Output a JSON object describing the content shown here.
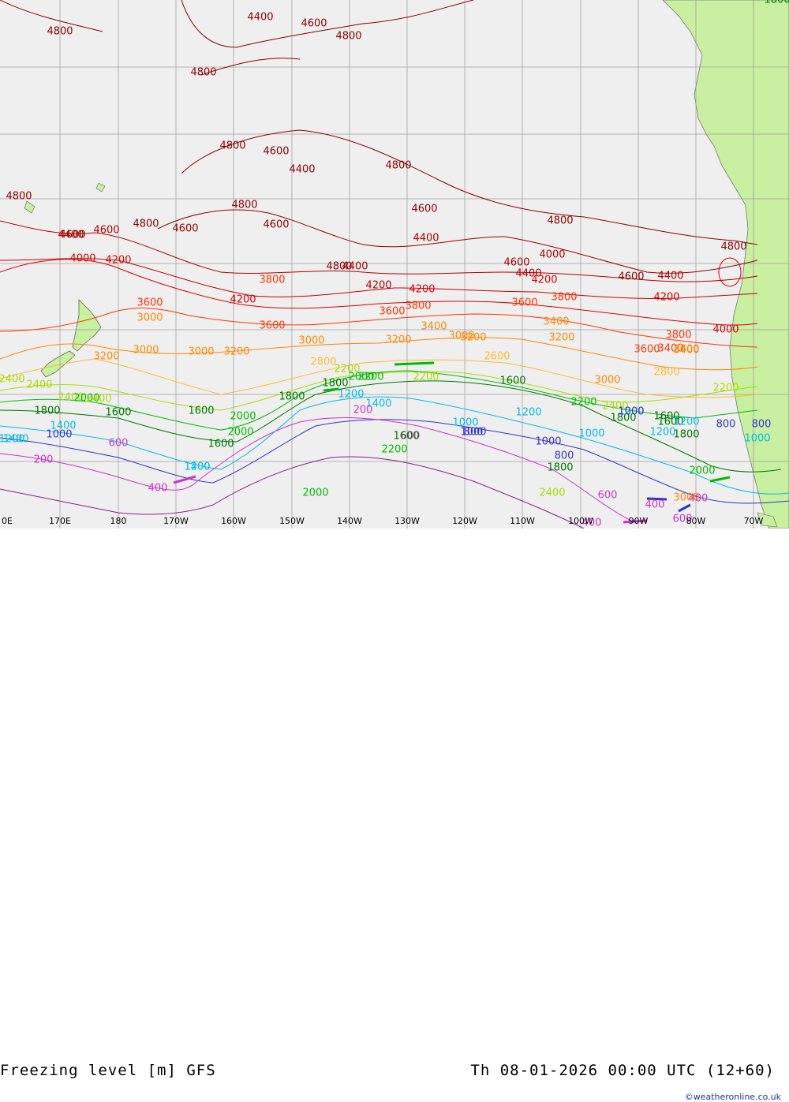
{
  "title": "Freezing level [m] GFS",
  "valid_time": "Th 08-01-2026 00:00 UTC (12+60)",
  "credit": "©weatheronline.co.uk",
  "lon_labels": [
    "170E",
    "180",
    "170W",
    "160W",
    "150W",
    "140W",
    "130W",
    "120W",
    "110W",
    "100W",
    "90W",
    "80W",
    "70W"
  ],
  "lon_label_partial": "0E",
  "colors": {
    "ocean": "#efefef",
    "land": "#c8f0a0",
    "grid": "#a0a0a0",
    "c4800": "#8b0000",
    "c4400": "#b00000",
    "c4000": "#dd0000",
    "c3600": "#ff3300",
    "c3200": "#ff8800",
    "c2800": "#ffbb33",
    "c2400": "#aadd00",
    "c2000": "#00bb00",
    "c1600": "#007700",
    "c1200": "#00bbee",
    "c800": "#3333cc",
    "c400": "#cc33cc",
    "c0": "#882288"
  },
  "contour_levels": [
    4800,
    4400,
    4000,
    3600,
    3200,
    2800,
    2400,
    2000,
    1600,
    1200,
    800,
    400,
    200
  ],
  "contour_labels": [
    {
      "text": "4800",
      "level": "c4800"
    },
    {
      "text": "4400",
      "level": "c4800"
    },
    {
      "text": "4600",
      "level": "c4800"
    },
    {
      "text": "4800",
      "level": "c4800"
    },
    {
      "text": "4800",
      "level": "c4800"
    },
    {
      "text": "4800",
      "level": "c4800"
    },
    {
      "text": "4600",
      "level": "c4800"
    },
    {
      "text": "4400",
      "level": "c4800"
    },
    {
      "text": "4800",
      "level": "c4800"
    },
    {
      "text": "4800",
      "level": "c4800"
    },
    {
      "text": "4800",
      "level": "c4800"
    },
    {
      "text": "4600",
      "level": "c4800"
    },
    {
      "text": "4600",
      "level": "c4800"
    },
    {
      "text": "4800",
      "level": "c4800"
    },
    {
      "text": "4800",
      "level": "c4800"
    },
    {
      "text": "4600",
      "level": "c4800"
    },
    {
      "text": "4400",
      "level": "c4400"
    },
    {
      "text": "4600",
      "level": "c4800"
    },
    {
      "text": "4400",
      "level": "c4400"
    },
    {
      "text": "4800",
      "level": "c4800"
    },
    {
      "text": "4000",
      "level": "c4000"
    },
    {
      "text": "4200",
      "level": "c4000"
    },
    {
      "text": "4600",
      "level": "c4400"
    },
    {
      "text": "4400",
      "level": "c4400"
    },
    {
      "text": "4200",
      "level": "c4400"
    },
    {
      "text": "4000",
      "level": "c4400"
    },
    {
      "text": "4600",
      "level": "c4400"
    },
    {
      "text": "4400",
      "level": "c4400"
    },
    {
      "text": "4200",
      "level": "c4000"
    },
    {
      "text": "4800",
      "level": "c4800"
    },
    {
      "text": "4600",
      "level": "c4800"
    },
    {
      "text": "4400",
      "level": "c4400"
    },
    {
      "text": "4200",
      "level": "c4000"
    },
    {
      "text": "3600",
      "level": "c3600"
    },
    {
      "text": "4200",
      "level": "c4000"
    },
    {
      "text": "3600",
      "level": "c3600"
    },
    {
      "text": "3800",
      "level": "c3600"
    },
    {
      "text": "3600",
      "level": "c3600"
    },
    {
      "text": "3800",
      "level": "c3600"
    },
    {
      "text": "4200",
      "level": "c4000"
    },
    {
      "text": "3600",
      "level": "c3600"
    },
    {
      "text": "3400",
      "level": "c3200"
    },
    {
      "text": "3000",
      "level": "c3200"
    },
    {
      "text": "3800",
      "level": "c3600"
    },
    {
      "text": "3600",
      "level": "c3600"
    },
    {
      "text": "3400",
      "level": "c3600"
    },
    {
      "text": "4000",
      "level": "c4000"
    },
    {
      "text": "3800",
      "level": "c3600"
    },
    {
      "text": "3600",
      "level": "c3200"
    },
    {
      "text": "3400",
      "level": "c3200"
    },
    {
      "text": "3400",
      "level": "c3200"
    },
    {
      "text": "3200",
      "level": "c3200"
    },
    {
      "text": "3000",
      "level": "c3200"
    },
    {
      "text": "3200",
      "level": "c3200"
    },
    {
      "text": "3000",
      "level": "c3200"
    },
    {
      "text": "3200",
      "level": "c3200"
    },
    {
      "text": "3000",
      "level": "c3200"
    },
    {
      "text": "3200",
      "level": "c3200"
    },
    {
      "text": "3000",
      "level": "c3200"
    },
    {
      "text": "2800",
      "level": "c2800"
    },
    {
      "text": "2600",
      "level": "c2800"
    },
    {
      "text": "3000",
      "level": "c3200"
    },
    {
      "text": "3200",
      "level": "c3200"
    },
    {
      "text": "2800",
      "level": "c2800"
    },
    {
      "text": "2400",
      "level": "c2400"
    },
    {
      "text": "2400",
      "level": "c2400"
    },
    {
      "text": "2200",
      "level": "c2400"
    },
    {
      "text": "2000",
      "level": "c2000"
    },
    {
      "text": "2400",
      "level": "c2400"
    },
    {
      "text": "2200",
      "level": "c2000"
    },
    {
      "text": "2000",
      "level": "c2000"
    },
    {
      "text": "2200",
      "level": "c2000"
    },
    {
      "text": "2400",
      "level": "c2400"
    },
    {
      "text": "2200",
      "level": "c2400"
    },
    {
      "text": "2000",
      "level": "c2000"
    },
    {
      "text": "2200",
      "level": "c2400"
    },
    {
      "text": "2000",
      "level": "c2000"
    },
    {
      "text": "2400",
      "level": "c2400"
    },
    {
      "text": "1600",
      "level": "c1600"
    },
    {
      "text": "1800",
      "level": "c1600"
    },
    {
      "text": "1600",
      "level": "c1600"
    },
    {
      "text": "1800",
      "level": "c1600"
    },
    {
      "text": "1800",
      "level": "c1600"
    },
    {
      "text": "1600",
      "level": "c1600"
    },
    {
      "text": "1800",
      "level": "c1600"
    },
    {
      "text": "1800",
      "level": "c1600"
    },
    {
      "text": "1600",
      "level": "c1600"
    },
    {
      "text": "1600",
      "level": "c1600"
    },
    {
      "text": "1800",
      "level": "c1600"
    },
    {
      "text": "1600",
      "level": "c1600"
    },
    {
      "text": "1200",
      "level": "c1200"
    },
    {
      "text": "1000",
      "level": "c1200"
    },
    {
      "text": "1200",
      "level": "c1200"
    },
    {
      "text": "1400",
      "level": "c1200"
    },
    {
      "text": "1200",
      "level": "c1200"
    },
    {
      "text": "1400",
      "level": "c1200"
    },
    {
      "text": "1000",
      "level": "c1200"
    },
    {
      "text": "1200",
      "level": "c1200"
    },
    {
      "text": "1200",
      "level": "c1200"
    },
    {
      "text": "1000",
      "level": "c1200"
    },
    {
      "text": "1400",
      "level": "c1200"
    },
    {
      "text": "1200",
      "level": "c1200"
    },
    {
      "text": "1000",
      "level": "c800"
    },
    {
      "text": "800",
      "level": "c800"
    },
    {
      "text": "800",
      "level": "c800"
    },
    {
      "text": "1000",
      "level": "c800"
    },
    {
      "text": "800",
      "level": "c800"
    },
    {
      "text": "1000",
      "level": "c800"
    },
    {
      "text": "1000",
      "level": "c800"
    },
    {
      "text": "1400",
      "level": "c1200"
    },
    {
      "text": "1200",
      "level": "c1200"
    },
    {
      "text": "600",
      "level": "c400"
    },
    {
      "text": "600",
      "level": "c400"
    },
    {
      "text": "400",
      "level": "c400"
    },
    {
      "text": "400",
      "level": "c400"
    },
    {
      "text": "600",
      "level": "c400"
    },
    {
      "text": "400",
      "level": "c400"
    },
    {
      "text": "200",
      "level": "c400"
    },
    {
      "text": "200",
      "level": "c400"
    },
    {
      "text": "400",
      "level": "c400"
    },
    {
      "text": "600",
      "level": "c400"
    },
    {
      "text": "1800",
      "level": "c1600"
    },
    {
      "text": "2000",
      "level": "c2000"
    },
    {
      "text": "2200",
      "level": "c2000"
    },
    {
      "text": "2400",
      "level": "c2400"
    },
    {
      "text": "1600",
      "level": "c1600"
    },
    {
      "text": "800",
      "level": "c800"
    },
    {
      "text": "3000",
      "level": "c3200"
    },
    {
      "text": "2000",
      "level": "c2000"
    }
  ]
}
